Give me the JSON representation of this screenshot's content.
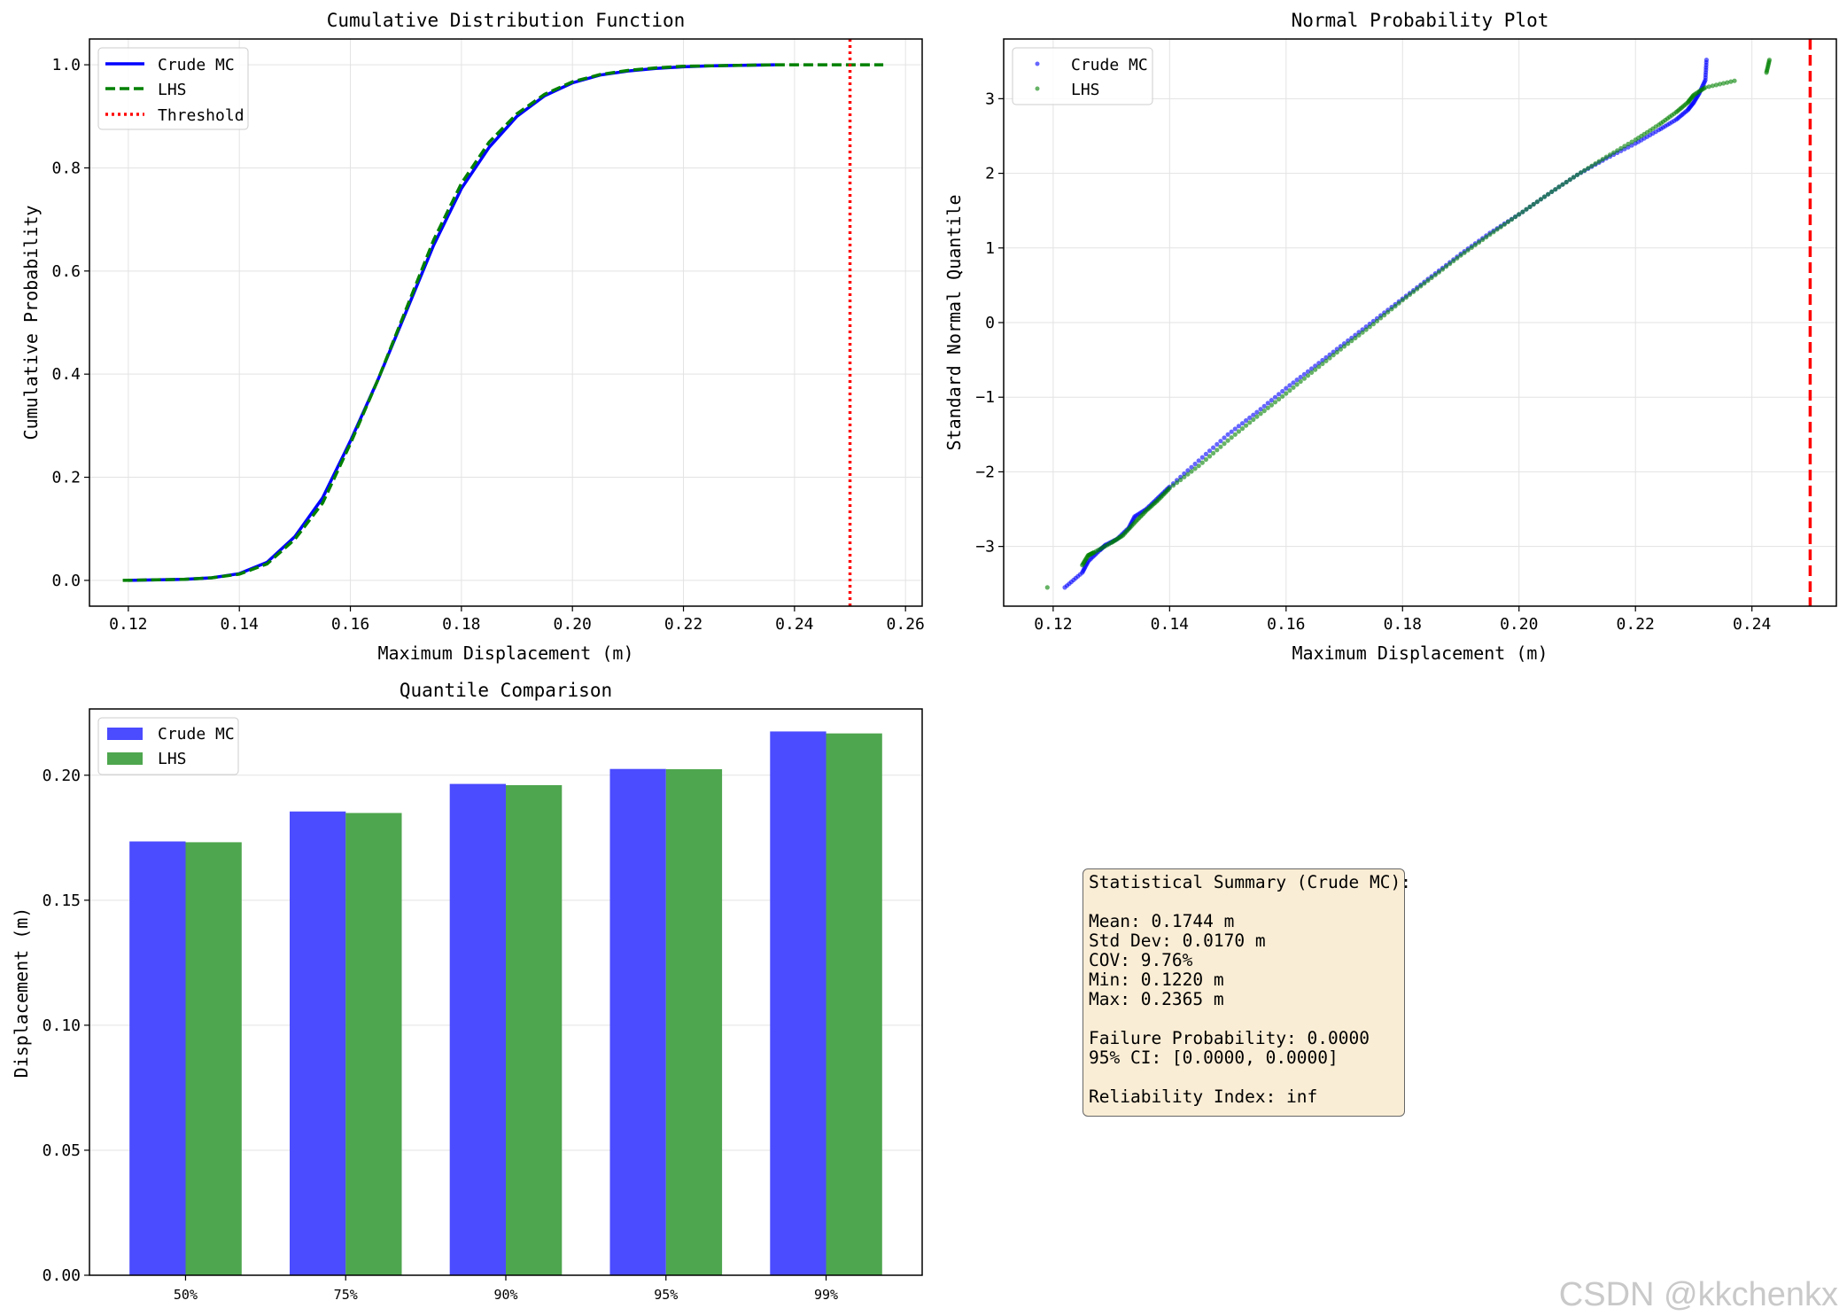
{
  "chart_data": [
    {
      "type": "line",
      "title": "Cumulative Distribution Function",
      "xlabel": "Maximum Displacement (m)",
      "ylabel": "Cumulative Probability",
      "xlim": [
        0.113,
        0.263
      ],
      "ylim": [
        -0.05,
        1.05
      ],
      "xticks": [
        0.12,
        0.14,
        0.16,
        0.18,
        0.2,
        0.22,
        0.24,
        0.26
      ],
      "xtick_labels": [
        "0.12",
        "0.14",
        "0.16",
        "0.18",
        "0.20",
        "0.22",
        "0.24",
        "0.26"
      ],
      "yticks": [
        0.0,
        0.2,
        0.4,
        0.6,
        0.8,
        1.0
      ],
      "ytick_labels": [
        "0.0",
        "0.2",
        "0.4",
        "0.6",
        "0.8",
        "1.0"
      ],
      "grid": true,
      "legend": "upper left",
      "series": [
        {
          "name": "Crude MC",
          "color": "#0000ff",
          "style": "solid",
          "x": [
            0.12,
            0.13,
            0.135,
            0.14,
            0.145,
            0.15,
            0.155,
            0.16,
            0.165,
            0.17,
            0.175,
            0.18,
            0.185,
            0.19,
            0.195,
            0.2,
            0.205,
            0.21,
            0.215,
            0.22,
            0.225,
            0.23,
            0.2365
          ],
          "y": [
            0.0,
            0.002,
            0.005,
            0.013,
            0.035,
            0.085,
            0.16,
            0.27,
            0.39,
            0.52,
            0.65,
            0.76,
            0.84,
            0.9,
            0.94,
            0.965,
            0.98,
            0.988,
            0.993,
            0.996,
            0.998,
            0.999,
            1.0
          ]
        },
        {
          "name": "LHS",
          "color": "#008000",
          "style": "dashed",
          "x": [
            0.119,
            0.13,
            0.135,
            0.14,
            0.145,
            0.15,
            0.155,
            0.16,
            0.165,
            0.17,
            0.175,
            0.18,
            0.185,
            0.19,
            0.195,
            0.2,
            0.205,
            0.21,
            0.215,
            0.22,
            0.225,
            0.23,
            0.237,
            0.256
          ],
          "y": [
            0.0,
            0.002,
            0.005,
            0.012,
            0.032,
            0.08,
            0.15,
            0.265,
            0.39,
            0.525,
            0.66,
            0.77,
            0.85,
            0.905,
            0.943,
            0.967,
            0.981,
            0.989,
            0.994,
            0.997,
            0.998,
            0.999,
            1.0,
            1.0
          ]
        },
        {
          "name": "Threshold",
          "color": "#ff0000",
          "style": "dotted",
          "vline": 0.25
        }
      ]
    },
    {
      "type": "scatter",
      "title": "Normal Probability Plot",
      "xlabel": "Maximum Displacement (m)",
      "ylabel": "Standard Normal Quantile",
      "xlim": [
        0.1115,
        0.2545
      ],
      "ylim": [
        -3.8,
        3.8
      ],
      "xticks": [
        0.12,
        0.14,
        0.16,
        0.18,
        0.2,
        0.22,
        0.24
      ],
      "xtick_labels": [
        "0.12",
        "0.14",
        "0.16",
        "0.18",
        "0.20",
        "0.22",
        "0.24"
      ],
      "yticks": [
        -3,
        -2,
        -1,
        0,
        1,
        2,
        3
      ],
      "ytick_labels": [
        "−3",
        "−2",
        "−1",
        "0",
        "1",
        "2",
        "3"
      ],
      "grid": true,
      "legend": "upper left",
      "vline": {
        "x": 0.25,
        "color": "#ff0000",
        "style": "dashed"
      },
      "series": [
        {
          "name": "Crude MC",
          "color": "#0000ff",
          "points": [
            [
              0.122,
              -3.55
            ],
            [
              0.125,
              -3.35
            ],
            [
              0.126,
              -3.2
            ],
            [
              0.128,
              -3.05
            ],
            [
              0.129,
              -2.98
            ],
            [
              0.131,
              -2.9
            ],
            [
              0.133,
              -2.75
            ],
            [
              0.134,
              -2.6
            ],
            [
              0.136,
              -2.5
            ],
            [
              0.138,
              -2.35
            ],
            [
              0.14,
              -2.2
            ],
            [
              0.145,
              -1.85
            ],
            [
              0.15,
              -1.5
            ],
            [
              0.155,
              -1.2
            ],
            [
              0.16,
              -0.88
            ],
            [
              0.165,
              -0.58
            ],
            [
              0.17,
              -0.28
            ],
            [
              0.175,
              0.02
            ],
            [
              0.18,
              0.32
            ],
            [
              0.185,
              0.62
            ],
            [
              0.19,
              0.92
            ],
            [
              0.195,
              1.2
            ],
            [
              0.2,
              1.45
            ],
            [
              0.205,
              1.72
            ],
            [
              0.21,
              1.98
            ],
            [
              0.215,
              2.2
            ],
            [
              0.22,
              2.4
            ],
            [
              0.224,
              2.58
            ],
            [
              0.227,
              2.72
            ],
            [
              0.229,
              2.85
            ],
            [
              0.23,
              2.95
            ],
            [
              0.231,
              3.08
            ],
            [
              0.232,
              3.25
            ],
            [
              0.2322,
              3.52
            ]
          ]
        },
        {
          "name": "LHS",
          "color": "#008000",
          "points": [
            [
              0.119,
              -3.55
            ],
            [
              0.125,
              -3.25
            ],
            [
              0.126,
              -3.12
            ],
            [
              0.127,
              -3.08
            ],
            [
              0.13,
              -2.95
            ],
            [
              0.132,
              -2.85
            ],
            [
              0.134,
              -2.68
            ],
            [
              0.136,
              -2.52
            ],
            [
              0.138,
              -2.38
            ],
            [
              0.14,
              -2.22
            ],
            [
              0.145,
              -1.92
            ],
            [
              0.15,
              -1.58
            ],
            [
              0.155,
              -1.26
            ],
            [
              0.16,
              -0.95
            ],
            [
              0.165,
              -0.63
            ],
            [
              0.17,
              -0.32
            ],
            [
              0.175,
              -0.02
            ],
            [
              0.18,
              0.3
            ],
            [
              0.185,
              0.6
            ],
            [
              0.19,
              0.9
            ],
            [
              0.195,
              1.18
            ],
            [
              0.2,
              1.45
            ],
            [
              0.205,
              1.72
            ],
            [
              0.21,
              1.98
            ],
            [
              0.215,
              2.22
            ],
            [
              0.22,
              2.45
            ],
            [
              0.224,
              2.65
            ],
            [
              0.227,
              2.82
            ],
            [
              0.229,
              2.95
            ],
            [
              0.23,
              3.05
            ],
            [
              0.232,
              3.15
            ],
            [
              0.237,
              3.24
            ],
            [
              0.2425,
              3.35
            ],
            [
              0.243,
              3.52
            ]
          ]
        }
      ]
    },
    {
      "type": "bar",
      "title": "Quantile Comparison",
      "xlabel": "",
      "ylabel": "Displacement (m)",
      "ylim": [
        0,
        0.2265
      ],
      "categories": [
        "50%",
        "75%",
        "90%",
        "95%",
        "99%"
      ],
      "yticks": [
        0.0,
        0.05,
        0.1,
        0.15,
        0.2
      ],
      "ytick_labels": [
        "0.00",
        "0.05",
        "0.10",
        "0.15",
        "0.20"
      ],
      "grid": true,
      "legend": "upper left",
      "series": [
        {
          "name": "Crude MC",
          "color": "#4b4bff",
          "values": [
            0.1735,
            0.1855,
            0.1965,
            0.2025,
            0.2175
          ]
        },
        {
          "name": "LHS",
          "color": "#4ea64e",
          "values": [
            0.1732,
            0.1849,
            0.196,
            0.2024,
            0.2167
          ]
        }
      ]
    }
  ],
  "stats": {
    "title": "Statistical Summary (Crude MC):",
    "mean": "Mean: 0.1744 m",
    "std": "Std Dev: 0.0170 m",
    "cov": "COV: 9.76%",
    "min": "Min: 0.1220 m",
    "max": "Max: 0.2365 m",
    "pf": "Failure Probability: 0.0000",
    "ci": "95% CI: [0.0000, 0.0000]",
    "beta": "Reliability Index: inf"
  },
  "watermark": "CSDN @kkchenkx"
}
